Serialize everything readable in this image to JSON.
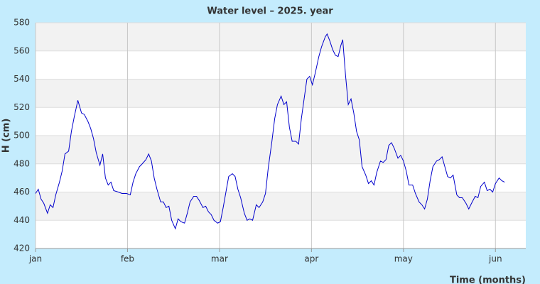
{
  "chart_data": {
    "type": "line",
    "title": "Water level – 2025. year",
    "x_label": "Time (months)",
    "y_label": "H (cm)",
    "xlim": [
      0,
      5.33
    ],
    "xticks": [
      {
        "value": 0,
        "label": "jan"
      },
      {
        "value": 1,
        "label": "feb"
      },
      {
        "value": 2,
        "label": "mar"
      },
      {
        "value": 3,
        "label": "apr"
      },
      {
        "value": 4,
        "label": "may"
      },
      {
        "value": 5,
        "label": "jun"
      }
    ],
    "ylim": [
      420,
      580
    ],
    "yticks": [
      420,
      440,
      460,
      480,
      500,
      520,
      540,
      560,
      580
    ],
    "grid": true,
    "series": [
      {
        "color": "#0000cc",
        "x": [
          0,
          0.03,
          0.06,
          0.09,
          0.13,
          0.16,
          0.19,
          0.22,
          0.26,
          0.29,
          0.32,
          0.36,
          0.39,
          0.42,
          0.46,
          0.5,
          0.53,
          0.57,
          0.6,
          0.63,
          0.66,
          0.7,
          0.73,
          0.76,
          0.79,
          0.82,
          0.85,
          0.9,
          0.94,
          0.99,
          1.03,
          1.06,
          1.09,
          1.13,
          1.16,
          1.2,
          1.23,
          1.26,
          1.29,
          1.32,
          1.36,
          1.39,
          1.42,
          1.45,
          1.48,
          1.52,
          1.55,
          1.58,
          1.62,
          1.65,
          1.68,
          1.72,
          1.75,
          1.78,
          1.82,
          1.85,
          1.88,
          1.91,
          1.94,
          1.98,
          2.01,
          2.04,
          2.07,
          2.1,
          2.14,
          2.17,
          2.2,
          2.23,
          2.27,
          2.3,
          2.33,
          2.36,
          2.4,
          2.43,
          2.47,
          2.5,
          2.53,
          2.57,
          2.6,
          2.63,
          2.67,
          2.7,
          2.73,
          2.76,
          2.79,
          2.83,
          2.86,
          2.89,
          2.92,
          2.95,
          2.98,
          3.01,
          3.04,
          3.08,
          3.11,
          3.15,
          3.17,
          3.2,
          3.23,
          3.26,
          3.29,
          3.32,
          3.34,
          3.37,
          3.4,
          3.43,
          3.46,
          3.49,
          3.52,
          3.55,
          3.59,
          3.62,
          3.65,
          3.68,
          3.71,
          3.75,
          3.78,
          3.81,
          3.84,
          3.87,
          3.9,
          3.94,
          3.97,
          4,
          4.03,
          4.06,
          4.1,
          4.13,
          4.17,
          4.2,
          4.23,
          4.26,
          4.29,
          4.32,
          4.36,
          4.39,
          4.42,
          4.45,
          4.48,
          4.51,
          4.54,
          4.58,
          4.61,
          4.64,
          4.68,
          4.71,
          4.74,
          4.78,
          4.81,
          4.84,
          4.88,
          4.91,
          4.94,
          4.97,
          5,
          5.04,
          5.07,
          5.1
        ],
        "values": [
          459,
          462,
          455,
          452,
          445,
          451,
          449,
          458,
          467,
          475,
          487,
          489,
          503,
          513,
          525,
          516,
          515,
          510,
          505,
          498,
          488,
          479,
          487,
          470,
          465,
          467,
          461,
          460,
          459,
          459,
          458,
          467,
          473,
          478,
          480,
          483,
          487,
          482,
          470,
          462,
          453,
          453,
          449,
          450,
          440,
          434,
          441,
          439,
          438,
          445,
          453,
          457,
          457,
          454,
          449,
          450,
          446,
          444,
          440,
          438,
          439,
          449,
          460,
          471,
          473,
          471,
          462,
          456,
          445,
          440,
          441,
          440,
          451,
          449,
          453,
          459,
          477,
          496,
          512,
          522,
          528,
          522,
          524,
          506,
          496,
          496,
          494,
          512,
          526,
          540,
          542,
          536,
          544,
          556,
          563,
          570,
          572,
          567,
          561,
          557,
          556,
          564,
          568,
          543,
          522,
          526,
          516,
          503,
          497,
          478,
          472,
          466,
          468,
          465,
          474,
          482,
          481,
          483,
          493,
          495,
          491,
          484,
          486,
          482,
          475,
          465,
          465,
          459,
          453,
          451,
          448,
          455,
          468,
          478,
          482,
          483,
          485,
          478,
          471,
          470,
          472,
          458,
          456,
          456,
          452,
          448,
          452,
          457,
          456,
          464,
          467,
          461,
          462,
          460,
          466,
          470,
          468,
          467
        ]
      }
    ]
  }
}
